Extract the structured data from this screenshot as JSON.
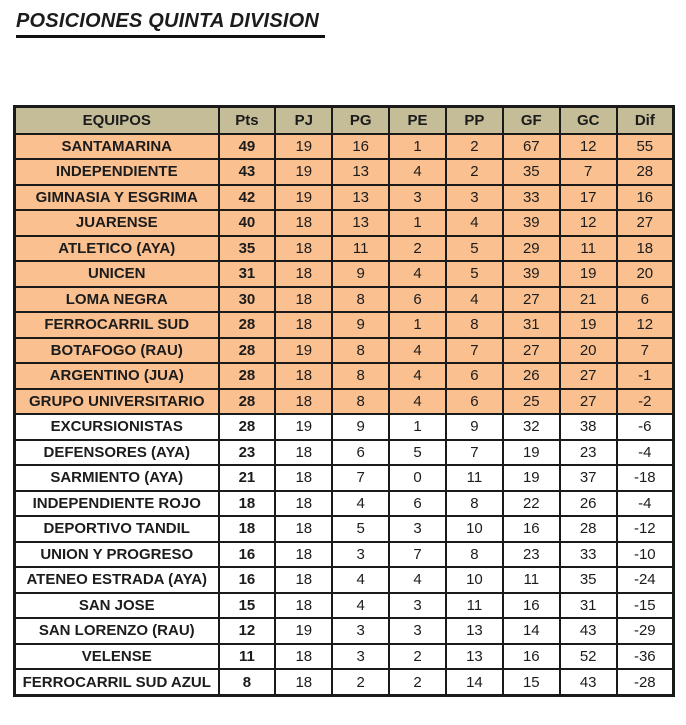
{
  "title": "POSICIONES QUINTA DIVISION",
  "colors": {
    "header_bg": "#c4bd97",
    "highlight_row_bg": "#fac090",
    "normal_row_bg": "#ffffff",
    "border": "#1a1a1a",
    "text": "#1c1c1c"
  },
  "table": {
    "columns": [
      "EQUIPOS",
      "Pts",
      "PJ",
      "PG",
      "PE",
      "PP",
      "GF",
      "GC",
      "Dif"
    ],
    "rows": [
      {
        "team": "SANTAMARINA",
        "stats": [
          49,
          19,
          16,
          1,
          2,
          67,
          12,
          55
        ],
        "highlighted": true
      },
      {
        "team": "INDEPENDIENTE",
        "stats": [
          43,
          19,
          13,
          4,
          2,
          35,
          7,
          28
        ],
        "highlighted": true
      },
      {
        "team": "GIMNASIA Y ESGRIMA",
        "stats": [
          42,
          19,
          13,
          3,
          3,
          33,
          17,
          16
        ],
        "highlighted": true
      },
      {
        "team": "JUARENSE",
        "stats": [
          40,
          18,
          13,
          1,
          4,
          39,
          12,
          27
        ],
        "highlighted": true
      },
      {
        "team": "ATLETICO (AYA)",
        "stats": [
          35,
          18,
          11,
          2,
          5,
          29,
          11,
          18
        ],
        "highlighted": true
      },
      {
        "team": "UNICEN",
        "stats": [
          31,
          18,
          9,
          4,
          5,
          39,
          19,
          20
        ],
        "highlighted": true
      },
      {
        "team": "LOMA NEGRA",
        "stats": [
          30,
          18,
          8,
          6,
          4,
          27,
          21,
          6
        ],
        "highlighted": true
      },
      {
        "team": "FERROCARRIL SUD",
        "stats": [
          28,
          18,
          9,
          1,
          8,
          31,
          19,
          12
        ],
        "highlighted": true
      },
      {
        "team": "BOTAFOGO (RAU)",
        "stats": [
          28,
          19,
          8,
          4,
          7,
          27,
          20,
          7
        ],
        "highlighted": true
      },
      {
        "team": "ARGENTINO (JUA)",
        "stats": [
          28,
          18,
          8,
          4,
          6,
          26,
          27,
          -1
        ],
        "highlighted": true
      },
      {
        "team": "GRUPO UNIVERSITARIO",
        "stats": [
          28,
          18,
          8,
          4,
          6,
          25,
          27,
          -2
        ],
        "highlighted": true
      },
      {
        "team": "EXCURSIONISTAS",
        "stats": [
          28,
          19,
          9,
          1,
          9,
          32,
          38,
          -6
        ],
        "highlighted": false
      },
      {
        "team": "DEFENSORES (AYA)",
        "stats": [
          23,
          18,
          6,
          5,
          7,
          19,
          23,
          -4
        ],
        "highlighted": false
      },
      {
        "team": "SARMIENTO (AYA)",
        "stats": [
          21,
          18,
          7,
          0,
          11,
          19,
          37,
          -18
        ],
        "highlighted": false
      },
      {
        "team": "INDEPENDIENTE ROJO",
        "stats": [
          18,
          18,
          4,
          6,
          8,
          22,
          26,
          -4
        ],
        "highlighted": false
      },
      {
        "team": "DEPORTIVO TANDIL",
        "stats": [
          18,
          18,
          5,
          3,
          10,
          16,
          28,
          -12
        ],
        "highlighted": false
      },
      {
        "team": "UNION Y PROGRESO",
        "stats": [
          16,
          18,
          3,
          7,
          8,
          23,
          33,
          -10
        ],
        "highlighted": false
      },
      {
        "team": "ATENEO ESTRADA (AYA)",
        "stats": [
          16,
          18,
          4,
          4,
          10,
          11,
          35,
          -24
        ],
        "highlighted": false
      },
      {
        "team": "SAN JOSE",
        "stats": [
          15,
          18,
          4,
          3,
          11,
          16,
          31,
          -15
        ],
        "highlighted": false
      },
      {
        "team": "SAN LORENZO (RAU)",
        "stats": [
          12,
          19,
          3,
          3,
          13,
          14,
          43,
          -29
        ],
        "highlighted": false
      },
      {
        "team": "VELENSE",
        "stats": [
          11,
          18,
          3,
          2,
          13,
          16,
          52,
          -36
        ],
        "highlighted": false
      },
      {
        "team": "FERROCARRIL SUD AZUL",
        "stats": [
          8,
          18,
          2,
          2,
          14,
          15,
          43,
          -28
        ],
        "highlighted": false
      }
    ]
  },
  "chart_data": {
    "type": "table",
    "title": "POSICIONES QUINTA DIVISION",
    "columns": [
      "EQUIPOS",
      "Pts",
      "PJ",
      "PG",
      "PE",
      "PP",
      "GF",
      "GC",
      "Dif"
    ],
    "rows": [
      [
        "SANTAMARINA",
        49,
        19,
        16,
        1,
        2,
        67,
        12,
        55
      ],
      [
        "INDEPENDIENTE",
        43,
        19,
        13,
        4,
        2,
        35,
        7,
        28
      ],
      [
        "GIMNASIA Y ESGRIMA",
        42,
        19,
        13,
        3,
        3,
        33,
        17,
        16
      ],
      [
        "JUARENSE",
        40,
        18,
        13,
        1,
        4,
        39,
        12,
        27
      ],
      [
        "ATLETICO (AYA)",
        35,
        18,
        11,
        2,
        5,
        29,
        11,
        18
      ],
      [
        "UNICEN",
        31,
        18,
        9,
        4,
        5,
        39,
        19,
        20
      ],
      [
        "LOMA NEGRA",
        30,
        18,
        8,
        6,
        4,
        27,
        21,
        6
      ],
      [
        "FERROCARRIL SUD",
        28,
        18,
        9,
        1,
        8,
        31,
        19,
        12
      ],
      [
        "BOTAFOGO (RAU)",
        28,
        19,
        8,
        4,
        7,
        27,
        20,
        7
      ],
      [
        "ARGENTINO (JUA)",
        28,
        18,
        8,
        4,
        6,
        26,
        27,
        -1
      ],
      [
        "GRUPO UNIVERSITARIO",
        28,
        18,
        8,
        4,
        6,
        25,
        27,
        -2
      ],
      [
        "EXCURSIONISTAS",
        28,
        19,
        9,
        1,
        9,
        32,
        38,
        -6
      ],
      [
        "DEFENSORES (AYA)",
        23,
        18,
        6,
        5,
        7,
        19,
        23,
        -4
      ],
      [
        "SARMIENTO (AYA)",
        21,
        18,
        7,
        0,
        11,
        19,
        37,
        -18
      ],
      [
        "INDEPENDIENTE ROJO",
        18,
        18,
        4,
        6,
        8,
        22,
        26,
        -4
      ],
      [
        "DEPORTIVO TANDIL",
        18,
        18,
        5,
        3,
        10,
        16,
        28,
        -12
      ],
      [
        "UNION Y PROGRESO",
        16,
        18,
        3,
        7,
        8,
        23,
        33,
        -10
      ],
      [
        "ATENEO ESTRADA (AYA)",
        16,
        18,
        4,
        4,
        10,
        11,
        35,
        -24
      ],
      [
        "SAN JOSE",
        15,
        18,
        4,
        3,
        11,
        16,
        31,
        -15
      ],
      [
        "SAN LORENZO (RAU)",
        12,
        19,
        3,
        3,
        13,
        14,
        43,
        -29
      ],
      [
        "VELENSE",
        11,
        18,
        3,
        2,
        13,
        16,
        52,
        -36
      ],
      [
        "FERROCARRIL SUD AZUL",
        8,
        18,
        2,
        2,
        14,
        15,
        43,
        -28
      ]
    ],
    "layout": {
      "highlighted_rows_1_to_11_bg": "#fac090",
      "header_bg": "#c4bd97",
      "grid": "on"
    }
  }
}
